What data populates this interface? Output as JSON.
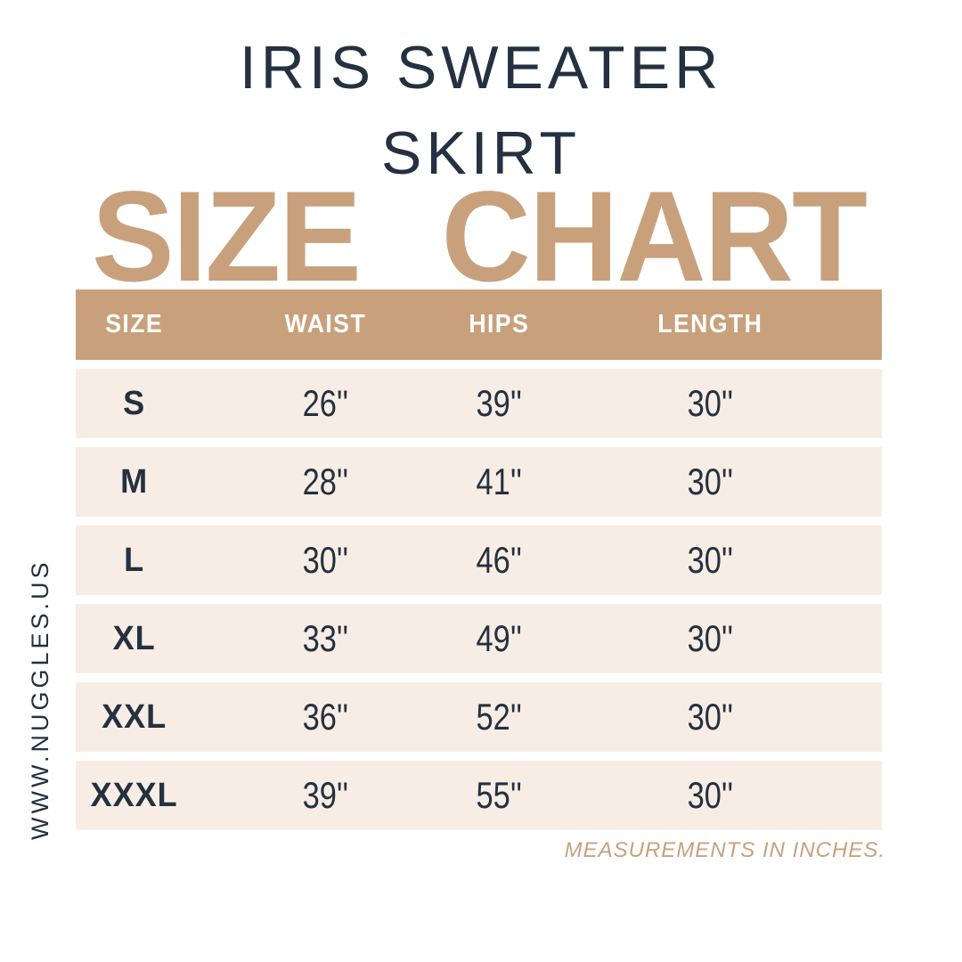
{
  "title": {
    "line1": "IRIS SWEATER",
    "line2": "SKIRT"
  },
  "heading": {
    "text": "SIZE CHART"
  },
  "table": {
    "columns": [
      "SIZE",
      "WAIST",
      "HIPS",
      "LENGTH"
    ],
    "rows": [
      {
        "size": "S",
        "waist": "26''",
        "hips": "39''",
        "length": "30''"
      },
      {
        "size": "M",
        "waist": "28''",
        "hips": "41''",
        "length": "30''"
      },
      {
        "size": "L",
        "waist": "30''",
        "hips": "46''",
        "length": "30''"
      },
      {
        "size": "XL",
        "waist": "33''",
        "hips": "49''",
        "length": "30''"
      },
      {
        "size": "XXL",
        "waist": "36''",
        "hips": "52''",
        "length": "30''"
      },
      {
        "size": "XXXL",
        "waist": "39''",
        "hips": "55''",
        "length": "30''"
      }
    ]
  },
  "footer": {
    "note": "MEASUREMENTS IN INCHES."
  },
  "sidebar": {
    "website": "WWW.NUGGLES.US"
  },
  "colors": {
    "tan": "#c8a17c",
    "cream": "#f8ede4",
    "navy": "#233140",
    "white": "#ffffff"
  },
  "chart_data": {
    "type": "table",
    "title": "IRIS SWEATER SKIRT SIZE CHART",
    "columns": [
      "SIZE",
      "WAIST",
      "HIPS",
      "LENGTH"
    ],
    "rows": [
      [
        "S",
        26,
        39,
        30
      ],
      [
        "M",
        28,
        41,
        30
      ],
      [
        "L",
        30,
        46,
        30
      ],
      [
        "XL",
        33,
        49,
        30
      ],
      [
        "XXL",
        36,
        52,
        30
      ],
      [
        "XXXL",
        39,
        55,
        30
      ]
    ],
    "units": "inches"
  }
}
